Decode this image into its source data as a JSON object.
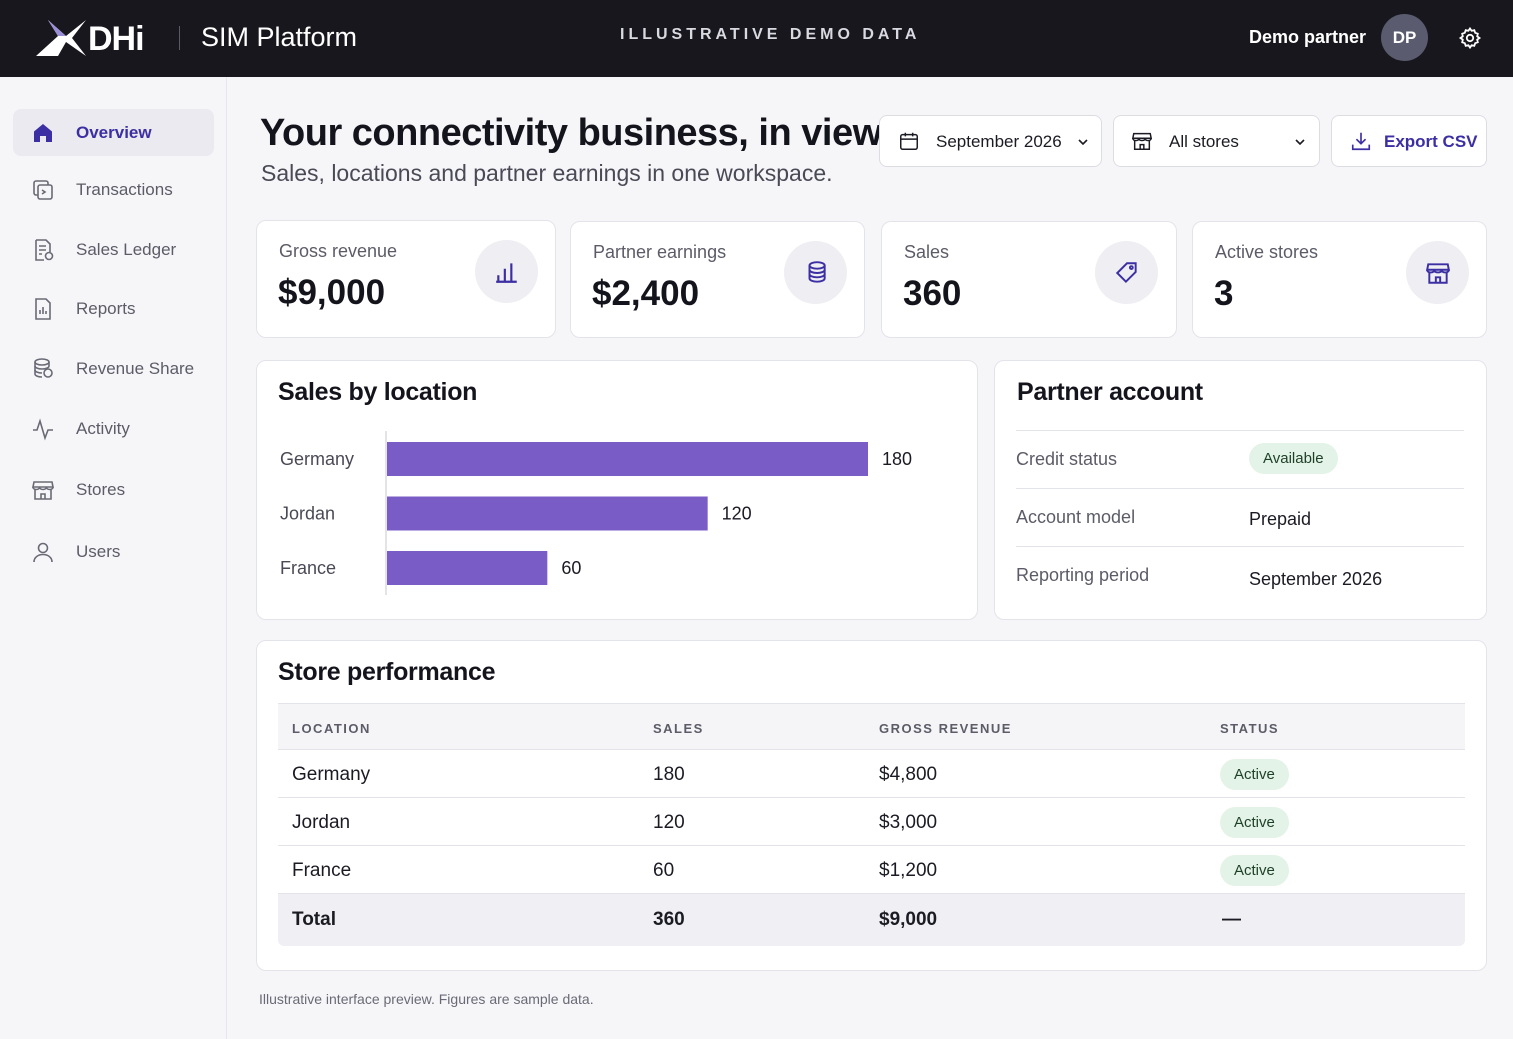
{
  "header": {
    "brand": "DHi",
    "app_title": "SIM Platform",
    "demo_banner": "ILLUSTRATIVE DEMO DATA",
    "user_name": "Demo partner",
    "avatar_initials": "DP"
  },
  "sidebar": {
    "items": [
      {
        "label": "Overview",
        "icon": "home-icon",
        "active": true
      },
      {
        "label": "Transactions",
        "icon": "transactions-icon"
      },
      {
        "label": "Sales Ledger",
        "icon": "ledger-icon"
      },
      {
        "label": "Reports",
        "icon": "reports-icon"
      },
      {
        "label": "Revenue Share",
        "icon": "coins-icon"
      },
      {
        "label": "Activity",
        "icon": "activity-icon"
      },
      {
        "label": "Stores",
        "icon": "store-icon"
      },
      {
        "label": "Users",
        "icon": "users-icon"
      }
    ]
  },
  "page": {
    "title": "Your connectivity business, in view.",
    "subtitle": "Sales, locations and partner earnings in one workspace."
  },
  "controls": {
    "period": "September 2026",
    "store_filter": "All stores",
    "export_label": "Export CSV"
  },
  "kpis": [
    {
      "label": "Gross revenue",
      "value": "$9,000",
      "icon": "bar-chart-icon"
    },
    {
      "label": "Partner earnings",
      "value": "$2,400",
      "icon": "coins-icon"
    },
    {
      "label": "Sales",
      "value": "360",
      "icon": "tag-icon"
    },
    {
      "label": "Active stores",
      "value": "3",
      "icon": "store-icon"
    }
  ],
  "sales_by_location": {
    "title": "Sales by location"
  },
  "chart_data": {
    "type": "bar",
    "orientation": "horizontal",
    "title": "Sales by location",
    "categories": [
      "Germany",
      "Jordan",
      "France"
    ],
    "values": [
      180,
      120,
      60
    ],
    "xlim": [
      0,
      180
    ],
    "grid": false,
    "color": "#7a5cc6"
  },
  "partner_account": {
    "title": "Partner account",
    "rows": [
      {
        "key": "Credit status",
        "value": "Available"
      },
      {
        "key": "Account model",
        "value": "Prepaid"
      },
      {
        "key": "Reporting period",
        "value": "September 2026"
      }
    ]
  },
  "store_performance": {
    "title": "Store performance",
    "columns": [
      "LOCATION",
      "SALES",
      "GROSS REVENUE",
      "STATUS"
    ],
    "rows": [
      {
        "location": "Germany",
        "sales": "180",
        "revenue": "$4,800",
        "status": "Active"
      },
      {
        "location": "Jordan",
        "sales": "120",
        "revenue": "$3,000",
        "status": "Active"
      },
      {
        "location": "France",
        "sales": "60",
        "revenue": "$1,200",
        "status": "Active"
      }
    ],
    "total": {
      "location": "Total",
      "sales": "360",
      "revenue": "$9,000",
      "status": "—"
    }
  },
  "footnote": "Illustrative interface preview. Figures are sample data.",
  "colors": {
    "accent": "#3c2fa3",
    "bar": "#7a5cc6",
    "topbar": "#17171d",
    "status_bg": "#e3f3e7"
  }
}
